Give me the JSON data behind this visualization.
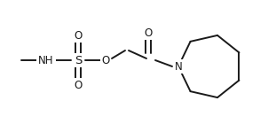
{
  "background_color": "#ffffff",
  "line_color": "#1a1a1a",
  "line_width": 1.4,
  "font_size": 8.5,
  "figsize": [
    3.02,
    1.4
  ],
  "dpi": 100,
  "xlim": [
    0,
    302
  ],
  "ylim": [
    0,
    140
  ]
}
